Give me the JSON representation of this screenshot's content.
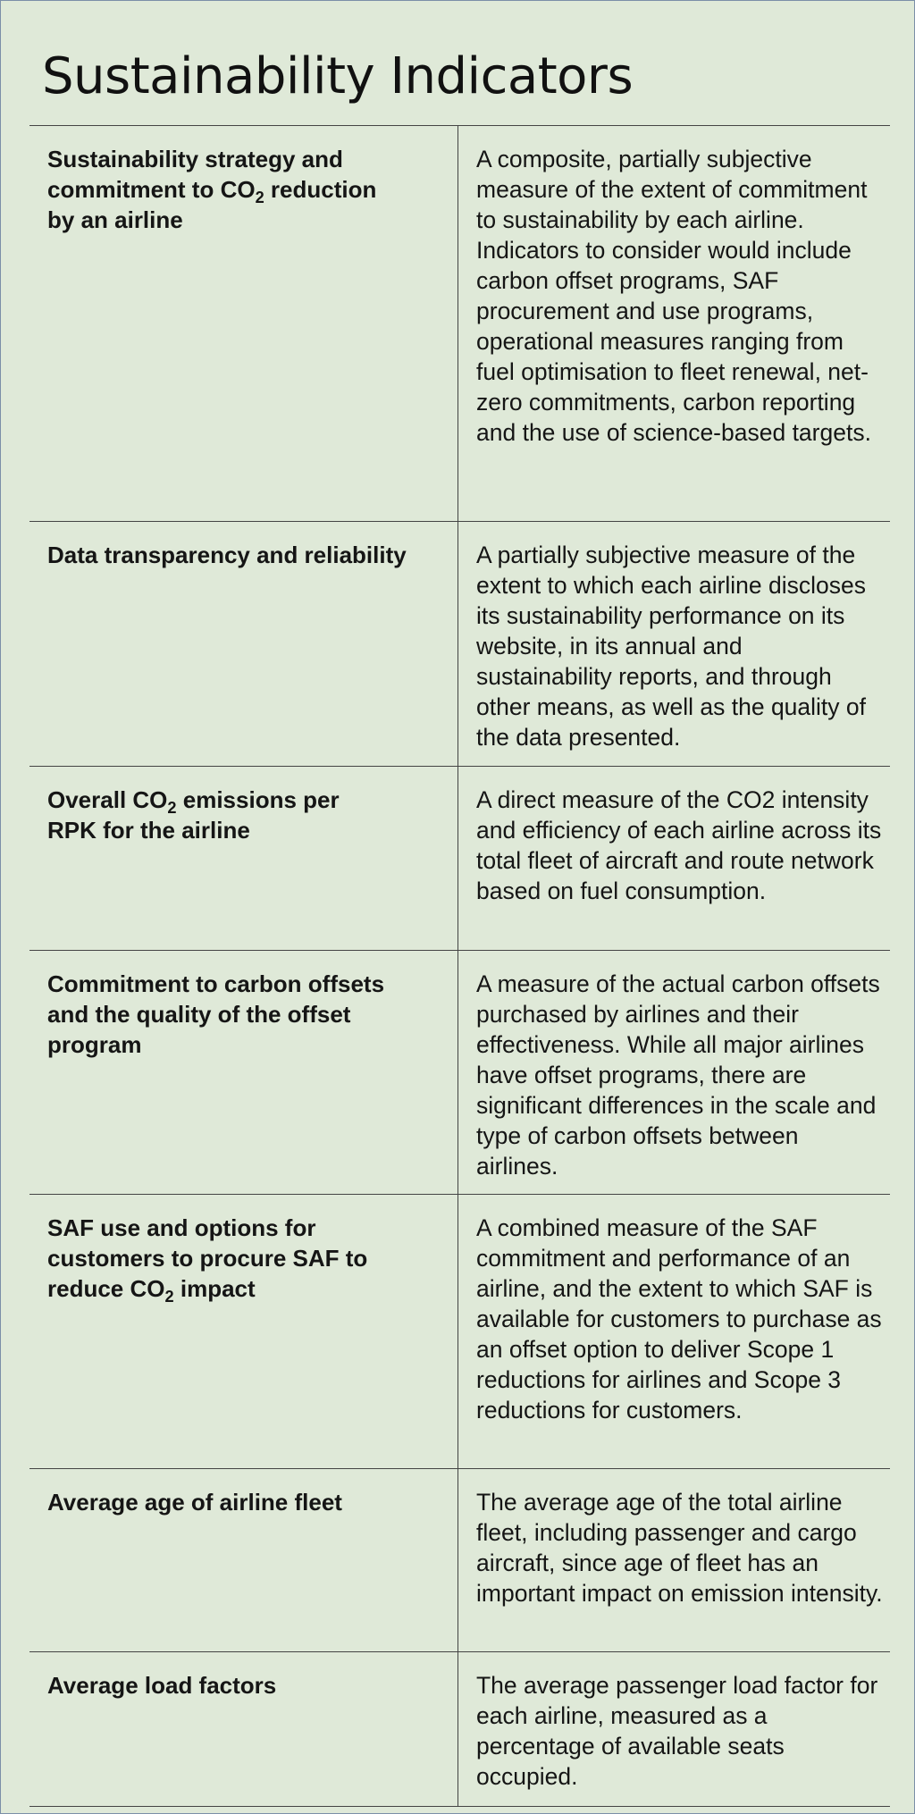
{
  "title": "Sustainability Indicators",
  "rows": [
    {
      "indicator_html": "Sustainability strategy and commitment to CO<sub style=\"font-size:70%;vertical-align:-6px\">2</sub> reduction by an airline",
      "indicator": "Sustainability strategy and commitment to CO2 reduction by an airline",
      "description": "A composite, partially subjective measure of the extent of commitment to sustainability by each airline. Indicators to consider would include carbon offset programs, SAF procurement and use programs, operational measures ranging from fuel optimisation to fleet renewal, net-zero commitments, carbon reporting and the use of science-based targets."
    },
    {
      "indicator": "Data transparency and reliability",
      "description": "A partially subjective measure of the extent to which each airline discloses its sustainability performance on its website, in its annual and sustainability reports, and through other means, as well as the quality of the data presented."
    },
    {
      "indicator": "Overall CO2 emissions per RPK for the airline",
      "description": "A direct measure of the CO2 intensity and efficiency of each airline across its total fleet of aircraft and route network based on fuel consumption."
    },
    {
      "indicator": "Commitment to carbon offsets and the quality of the offset program",
      "description": "A measure of the actual carbon offsets purchased by airlines and their effectiveness.  While all major airlines have offset programs, there are significant differences in the scale and type of carbon offsets between airlines."
    },
    {
      "indicator": "SAF use and options for customers to procure SAF to reduce CO2 impact",
      "description": "A combined measure of the SAF commitment and performance of an airline, and the extent to which SAF is available for customers to purchase as an offset option to deliver Scope 1 reductions for airlines and Scope 3 reductions for customers."
    },
    {
      "indicator": "Average age of airline fleet",
      "description": "The average age of the total airline fleet, including passenger and cargo aircraft, since age of fleet has an important impact on emission intensity."
    },
    {
      "indicator": "Average load factors",
      "description": "The average passenger load factor for each airline, measured as a percentage of available seats occupied."
    }
  ]
}
